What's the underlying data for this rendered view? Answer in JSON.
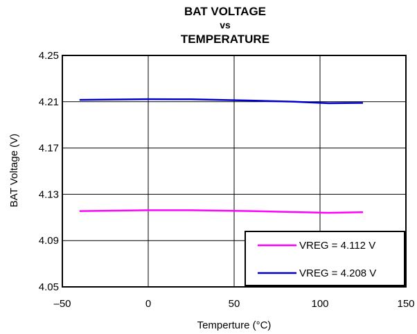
{
  "chart_data": {
    "type": "line",
    "title_lines": [
      "BAT VOLTAGE",
      "vs",
      "TEMPERATURE"
    ],
    "xlabel": "Temperture (°C)",
    "ylabel": "BAT Voltage (V)",
    "xlim": [
      -50,
      150
    ],
    "ylim": [
      4.05,
      4.25
    ],
    "xticks": [
      -50,
      0,
      50,
      100,
      150
    ],
    "xtick_labels": [
      "–50",
      "0",
      "50",
      "100",
      "150"
    ],
    "yticks": [
      4.05,
      4.09,
      4.13,
      4.17,
      4.21,
      4.25
    ],
    "ytick_labels": [
      "4.05",
      "4.09",
      "4.13",
      "4.17",
      "4.21",
      "4.25"
    ],
    "grid": true,
    "legend_position": "bottom-right",
    "series": [
      {
        "name": "VREG = 4.112 V",
        "color": "#ff00ff",
        "x": [
          -40,
          0,
          25,
          60,
          85,
          105,
          125
        ],
        "y": [
          4.1155,
          4.1162,
          4.1162,
          4.1155,
          4.1147,
          4.114,
          4.1145
        ]
      },
      {
        "name": "VREG = 4.208 V",
        "color": "#0000cc",
        "x": [
          -40,
          0,
          25,
          60,
          85,
          105,
          125
        ],
        "y": [
          4.2116,
          4.2122,
          4.2121,
          4.211,
          4.21,
          4.2087,
          4.209
        ]
      }
    ]
  }
}
